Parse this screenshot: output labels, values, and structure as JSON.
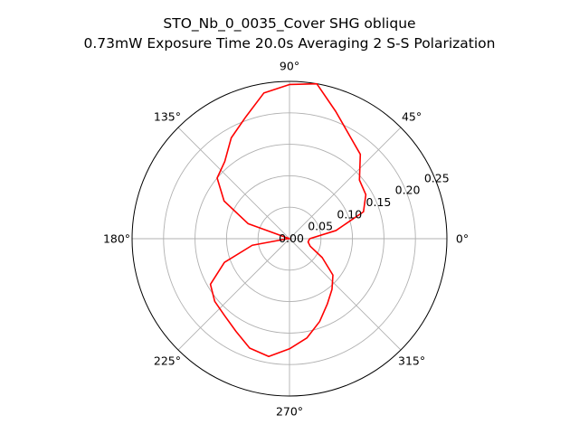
{
  "chart_data": {
    "type": "line",
    "projection": "polar",
    "title": "STO_Nb_0_0035_Cover SHG oblique",
    "subtitle": "0.73mW Exposure Time 20.0s Averaging 2 S-S  Polarization",
    "theta_unit": "degrees",
    "theta_ticks": [
      0,
      45,
      90,
      135,
      180,
      225,
      270,
      315
    ],
    "theta_tick_labels": [
      "0°",
      "45°",
      "90°",
      "135°",
      "180°",
      "225°",
      "270°",
      "315°"
    ],
    "r_ticks": [
      0.0,
      0.05,
      0.1,
      0.15,
      0.2,
      0.25
    ],
    "r_tick_labels": [
      "0.00",
      "0.05",
      "0.10",
      "0.15",
      "0.20",
      "0.25"
    ],
    "rlim": [
      0,
      0.25
    ],
    "r_label_angle_deg": 22.5,
    "grid": true,
    "series": [
      {
        "color": "#ff0000",
        "theta": [
          0,
          10,
          20,
          30,
          40,
          50,
          60,
          70,
          80,
          90,
          100,
          110,
          120,
          130,
          140,
          150,
          160,
          170,
          180,
          190,
          200,
          210,
          220,
          230,
          240,
          250,
          260,
          270,
          280,
          290,
          300,
          310,
          320,
          330,
          340,
          350,
          360
        ],
        "r": [
          0.032,
          0.075,
          0.125,
          0.14,
          0.145,
          0.175,
          0.19,
          0.215,
          0.25,
          0.245,
          0.235,
          0.205,
          0.185,
          0.16,
          0.15,
          0.12,
          0.07,
          0.0,
          0.003,
          0.06,
          0.11,
          0.145,
          0.155,
          0.16,
          0.17,
          0.185,
          0.19,
          0.175,
          0.16,
          0.14,
          0.12,
          0.105,
          0.09,
          0.06,
          0.035,
          0.03,
          0.032
        ]
      }
    ]
  }
}
